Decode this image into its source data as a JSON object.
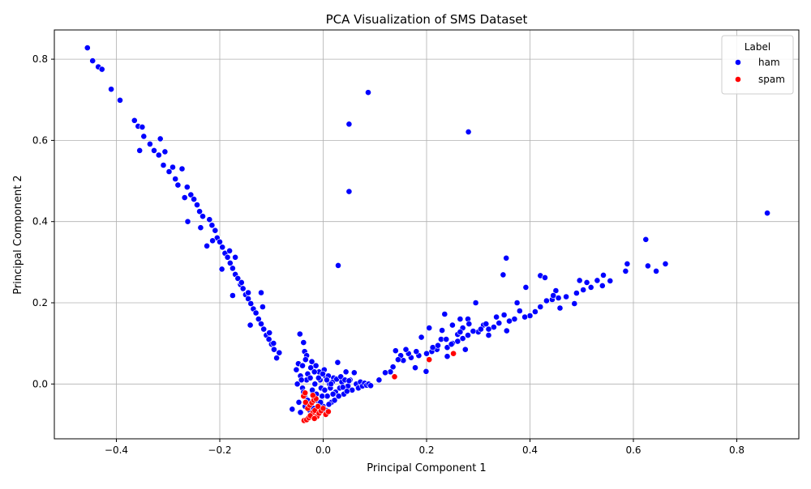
{
  "chart_data": {
    "type": "scatter",
    "title": "PCA Visualization of SMS Dataset",
    "xlabel": "Principal Component 1",
    "ylabel": "Principal Component 2",
    "xlim": [
      -0.52,
      0.92
    ],
    "ylim": [
      -0.135,
      0.872
    ],
    "xticks": [
      -0.4,
      -0.2,
      0.0,
      0.2,
      0.4,
      0.6,
      0.8
    ],
    "xtick_labels": [
      "−0.4",
      "−0.2",
      "0.0",
      "0.2",
      "0.4",
      "0.6",
      "0.8"
    ],
    "yticks": [
      0.0,
      0.2,
      0.4,
      0.6,
      0.8
    ],
    "ytick_labels": [
      "0.0",
      "0.2",
      "0.4",
      "0.6",
      "0.8"
    ],
    "grid": true,
    "legend": {
      "title": "Label",
      "placement": "top-right",
      "entries": [
        {
          "name": "ham",
          "color": "#0000ff"
        },
        {
          "name": "spam",
          "color": "#ff0000"
        }
      ]
    },
    "series": [
      {
        "name": "ham",
        "color": "#0000ff",
        "points": [
          [
            -0.456,
            0.828
          ],
          [
            -0.446,
            0.796
          ],
          [
            -0.435,
            0.781
          ],
          [
            -0.428,
            0.775
          ],
          [
            -0.41,
            0.726
          ],
          [
            -0.393,
            0.699
          ],
          [
            -0.365,
            0.649
          ],
          [
            -0.358,
            0.635
          ],
          [
            -0.35,
            0.633
          ],
          [
            -0.355,
            0.575
          ],
          [
            -0.347,
            0.61
          ],
          [
            -0.335,
            0.591
          ],
          [
            -0.327,
            0.575
          ],
          [
            -0.315,
            0.604
          ],
          [
            -0.318,
            0.564
          ],
          [
            -0.306,
            0.572
          ],
          [
            -0.309,
            0.539
          ],
          [
            -0.298,
            0.523
          ],
          [
            -0.291,
            0.534
          ],
          [
            -0.286,
            0.505
          ],
          [
            -0.281,
            0.49
          ],
          [
            -0.273,
            0.53
          ],
          [
            -0.268,
            0.459
          ],
          [
            -0.263,
            0.485
          ],
          [
            -0.256,
            0.466
          ],
          [
            -0.25,
            0.455
          ],
          [
            -0.244,
            0.441
          ],
          [
            -0.239,
            0.425
          ],
          [
            -0.233,
            0.413
          ],
          [
            -0.262,
            0.4
          ],
          [
            -0.22,
            0.405
          ],
          [
            -0.215,
            0.391
          ],
          [
            -0.209,
            0.378
          ],
          [
            -0.205,
            0.36
          ],
          [
            -0.2,
            0.35
          ],
          [
            -0.195,
            0.337
          ],
          [
            -0.19,
            0.322
          ],
          [
            -0.185,
            0.312
          ],
          [
            -0.18,
            0.298
          ],
          [
            -0.175,
            0.285
          ],
          [
            -0.17,
            0.27
          ],
          [
            -0.165,
            0.26
          ],
          [
            -0.16,
            0.245
          ],
          [
            -0.155,
            0.235
          ],
          [
            -0.15,
            0.22
          ],
          [
            -0.145,
            0.21
          ],
          [
            -0.14,
            0.198
          ],
          [
            -0.135,
            0.185
          ],
          [
            -0.13,
            0.175
          ],
          [
            -0.125,
            0.16
          ],
          [
            -0.12,
            0.148
          ],
          [
            -0.115,
            0.135
          ],
          [
            -0.11,
            0.12
          ],
          [
            -0.105,
            0.11
          ],
          [
            -0.1,
            0.098
          ],
          [
            -0.095,
            0.085
          ],
          [
            -0.085,
            0.077
          ],
          [
            -0.09,
            0.064
          ],
          [
            -0.17,
            0.312
          ],
          [
            -0.12,
            0.225
          ],
          [
            -0.145,
            0.225
          ],
          [
            -0.196,
            0.283
          ],
          [
            -0.175,
            0.218
          ],
          [
            -0.225,
            0.34
          ],
          [
            -0.237,
            0.385
          ],
          [
            -0.214,
            0.353
          ],
          [
            -0.181,
            0.328
          ],
          [
            -0.158,
            0.25
          ],
          [
            -0.141,
            0.145
          ],
          [
            -0.117,
            0.19
          ],
          [
            -0.104,
            0.126
          ],
          [
            -0.096,
            0.1
          ],
          [
            0.087,
            0.718
          ],
          [
            0.05,
            0.64
          ],
          [
            0.05,
            0.474
          ],
          [
            0.281,
            0.621
          ],
          [
            0.029,
            0.292
          ],
          [
            0.859,
            0.421
          ],
          [
            0.624,
            0.356
          ],
          [
            0.354,
            0.31
          ],
          [
            0.348,
            0.269
          ],
          [
            0.42,
            0.267
          ],
          [
            0.429,
            0.262
          ],
          [
            0.392,
            0.238
          ],
          [
            0.588,
            0.296
          ],
          [
            0.662,
            0.296
          ],
          [
            0.628,
            0.291
          ],
          [
            0.644,
            0.278
          ],
          [
            0.585,
            0.278
          ],
          [
            0.542,
            0.268
          ],
          [
            0.53,
            0.255
          ],
          [
            0.51,
            0.25
          ],
          [
            0.496,
            0.255
          ],
          [
            0.555,
            0.254
          ],
          [
            0.54,
            0.242
          ],
          [
            0.518,
            0.238
          ],
          [
            0.503,
            0.232
          ],
          [
            0.49,
            0.224
          ],
          [
            0.47,
            0.215
          ],
          [
            0.455,
            0.212
          ],
          [
            0.443,
            0.208
          ],
          [
            0.432,
            0.205
          ],
          [
            0.45,
            0.23
          ],
          [
            0.445,
            0.218
          ],
          [
            0.458,
            0.187
          ],
          [
            0.486,
            0.198
          ],
          [
            0.42,
            0.19
          ],
          [
            0.41,
            0.178
          ],
          [
            0.4,
            0.168
          ],
          [
            0.39,
            0.165
          ],
          [
            0.375,
            0.2
          ],
          [
            0.38,
            0.18
          ],
          [
            0.37,
            0.16
          ],
          [
            0.36,
            0.155
          ],
          [
            0.35,
            0.17
          ],
          [
            0.34,
            0.15
          ],
          [
            0.33,
            0.14
          ],
          [
            0.32,
            0.135
          ],
          [
            0.31,
            0.145
          ],
          [
            0.3,
            0.128
          ],
          [
            0.295,
            0.2
          ],
          [
            0.29,
            0.13
          ],
          [
            0.28,
            0.12
          ],
          [
            0.27,
            0.112
          ],
          [
            0.265,
            0.16
          ],
          [
            0.26,
            0.105
          ],
          [
            0.25,
            0.1
          ],
          [
            0.24,
            0.09
          ],
          [
            0.235,
            0.172
          ],
          [
            0.23,
            0.132
          ],
          [
            0.22,
            0.085
          ],
          [
            0.21,
            0.08
          ],
          [
            0.2,
            0.075
          ],
          [
            0.205,
            0.138
          ],
          [
            0.19,
            0.115
          ],
          [
            0.185,
            0.07
          ],
          [
            0.18,
            0.08
          ],
          [
            0.17,
            0.065
          ],
          [
            0.165,
            0.075
          ],
          [
            0.16,
            0.085
          ],
          [
            0.155,
            0.058
          ],
          [
            0.15,
            0.07
          ],
          [
            0.145,
            0.06
          ],
          [
            0.14,
            0.082
          ],
          [
            0.135,
            0.042
          ],
          [
            0.13,
            0.03
          ],
          [
            0.12,
            0.028
          ],
          [
            0.108,
            0.01
          ],
          [
            0.199,
            0.031
          ],
          [
            0.275,
            0.085
          ],
          [
            0.355,
            0.131
          ],
          [
            0.32,
            0.12
          ],
          [
            0.26,
            0.122
          ],
          [
            0.24,
            0.068
          ],
          [
            0.228,
            0.11
          ],
          [
            0.212,
            0.09
          ],
          [
            0.335,
            0.165
          ],
          [
            0.315,
            0.148
          ],
          [
            0.305,
            0.135
          ],
          [
            0.28,
            0.16
          ],
          [
            0.27,
            0.138
          ],
          [
            0.25,
            0.145
          ],
          [
            0.238,
            0.11
          ],
          [
            0.222,
            0.095
          ],
          [
            0.282,
            0.148
          ],
          [
            0.265,
            0.128
          ],
          [
            0.248,
            0.098
          ],
          [
            0.178,
            0.04
          ],
          [
            -0.045,
            0.123
          ],
          [
            -0.038,
            0.102
          ],
          [
            -0.036,
            0.08
          ],
          [
            -0.032,
            0.07
          ],
          [
            -0.06,
            -0.062
          ],
          [
            -0.052,
            0.035
          ],
          [
            -0.048,
            0.05
          ],
          [
            -0.044,
            0.02
          ],
          [
            -0.04,
            -0.01
          ],
          [
            -0.036,
            -0.03
          ],
          [
            -0.032,
            0.01
          ],
          [
            -0.028,
            -0.05
          ],
          [
            -0.024,
            0.04
          ],
          [
            -0.02,
            -0.02
          ],
          [
            -0.016,
            0.0
          ],
          [
            -0.012,
            -0.04
          ],
          [
            -0.008,
            0.03
          ],
          [
            -0.004,
            -0.01
          ],
          [
            0.0,
            -0.055
          ],
          [
            0.004,
            0.02
          ],
          [
            0.008,
            -0.03
          ],
          [
            0.012,
            0.0
          ],
          [
            0.016,
            -0.045
          ],
          [
            0.02,
            0.015
          ],
          [
            0.024,
            -0.02
          ],
          [
            0.028,
            0.053
          ],
          [
            0.032,
            -0.01
          ],
          [
            0.036,
            0.005
          ],
          [
            0.04,
            -0.025
          ],
          [
            0.044,
            0.03
          ],
          [
            0.048,
            -0.005
          ],
          [
            0.052,
            0.01
          ],
          [
            0.056,
            -0.015
          ],
          [
            0.06,
            0.028
          ],
          [
            0.064,
            0.0
          ],
          [
            0.068,
            -0.01
          ],
          [
            0.072,
            0.005
          ],
          [
            0.076,
            -0.005
          ],
          [
            0.08,
            0.002
          ],
          [
            0.084,
            -0.003
          ],
          [
            0.088,
            0.0
          ],
          [
            0.092,
            -0.004
          ],
          [
            -0.044,
            -0.07
          ],
          [
            -0.04,
            0.045
          ],
          [
            -0.035,
            -0.055
          ],
          [
            -0.03,
            0.025
          ],
          [
            -0.026,
            -0.065
          ],
          [
            -0.022,
            0.055
          ],
          [
            -0.018,
            -0.06
          ],
          [
            -0.014,
            0.045
          ],
          [
            -0.01,
            -0.07
          ],
          [
            -0.006,
            0.01
          ],
          [
            -0.002,
            -0.03
          ],
          [
            0.002,
            0.035
          ],
          [
            0.006,
            -0.065
          ],
          [
            0.01,
            0.02
          ],
          [
            0.014,
            -0.01
          ],
          [
            0.018,
            0.005
          ],
          [
            0.022,
            -0.04
          ],
          [
            0.026,
            0.012
          ],
          [
            0.03,
            -0.03
          ],
          [
            0.034,
            0.018
          ],
          [
            0.038,
            -0.008
          ],
          [
            0.042,
            0.01
          ],
          [
            0.046,
            -0.018
          ],
          [
            0.05,
            0.008
          ],
          [
            -0.05,
            0.0
          ],
          [
            -0.047,
            -0.045
          ],
          [
            -0.042,
            0.01
          ],
          [
            -0.038,
            -0.02
          ],
          [
            -0.034,
            0.06
          ],
          [
            -0.03,
            -0.04
          ],
          [
            -0.025,
            0.015
          ],
          [
            -0.021,
            -0.015
          ],
          [
            -0.017,
            0.03
          ],
          [
            -0.013,
            -0.025
          ],
          [
            -0.009,
            0.015
          ],
          [
            -0.005,
            -0.045
          ],
          [
            -0.001,
            0.025
          ],
          [
            0.003,
            -0.015
          ],
          [
            0.007,
            0.01
          ],
          [
            0.011,
            -0.05
          ],
          [
            0.015,
            0.0
          ],
          [
            0.019,
            -0.025
          ]
        ]
      },
      {
        "name": "spam",
        "color": "#ff0000",
        "points": [
          [
            -0.037,
            -0.09
          ],
          [
            -0.032,
            -0.088
          ],
          [
            -0.028,
            -0.083
          ],
          [
            -0.024,
            -0.076
          ],
          [
            -0.02,
            -0.07
          ],
          [
            -0.016,
            -0.065
          ],
          [
            -0.012,
            -0.08
          ],
          [
            -0.008,
            -0.072
          ],
          [
            -0.004,
            -0.066
          ],
          [
            -0.03,
            -0.06
          ],
          [
            -0.026,
            -0.052
          ],
          [
            -0.022,
            -0.046
          ],
          [
            -0.018,
            -0.04
          ],
          [
            -0.014,
            -0.036
          ],
          [
            -0.034,
            -0.045
          ],
          [
            -0.038,
            -0.03
          ],
          [
            -0.035,
            -0.022
          ],
          [
            -0.02,
            -0.028
          ],
          [
            -0.01,
            -0.055
          ],
          [
            0.0,
            -0.06
          ],
          [
            0.005,
            -0.075
          ],
          [
            0.01,
            -0.068
          ],
          [
            -0.025,
            -0.078
          ],
          [
            -0.017,
            -0.085
          ],
          [
            0.138,
            0.018
          ],
          [
            0.205,
            0.06
          ],
          [
            0.252,
            0.075
          ]
        ]
      }
    ]
  }
}
